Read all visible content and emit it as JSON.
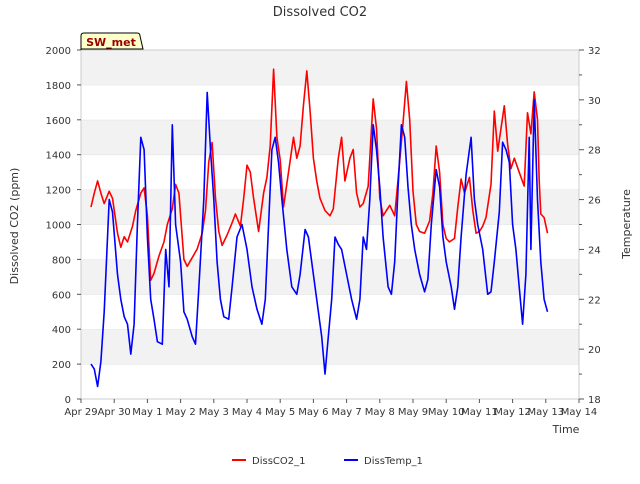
{
  "chart_data": {
    "type": "line",
    "title": "Dissolved CO2",
    "xlabel": "Time",
    "ylabel_left": "Dissolved CO2 (ppm)",
    "ylabel_right": "Temperature",
    "site_badge": "SW_met",
    "x_range_days": [
      0,
      15
    ],
    "x_ticks": [
      {
        "label": "Apr 29",
        "day": 0
      },
      {
        "label": "Apr 30",
        "day": 1
      },
      {
        "label": "May 1",
        "day": 2
      },
      {
        "label": "May 2",
        "day": 3
      },
      {
        "label": "May 3",
        "day": 4
      },
      {
        "label": "May 4",
        "day": 5
      },
      {
        "label": "May 5",
        "day": 6
      },
      {
        "label": "May 6",
        "day": 7
      },
      {
        "label": "May 7",
        "day": 8
      },
      {
        "label": "May 8",
        "day": 9
      },
      {
        "label": "May 9",
        "day": 10
      },
      {
        "label": "May 10",
        "day": 11
      },
      {
        "label": "May 11",
        "day": 12
      },
      {
        "label": "May 12",
        "day": 13
      },
      {
        "label": "May 13",
        "day": 14
      },
      {
        "label": "May 14",
        "day": 15
      }
    ],
    "y_left": {
      "min": 0,
      "max": 2000,
      "ticks": [
        0,
        200,
        400,
        600,
        800,
        1000,
        1200,
        1400,
        1600,
        1800,
        2000
      ]
    },
    "y_right": {
      "min": 18,
      "max": 32,
      "ticks": [
        18,
        20,
        22,
        24,
        26,
        28,
        30,
        32
      ]
    },
    "grid": "horizontal bands",
    "legend_position": "bottom-center",
    "series": [
      {
        "name": "DissCO2_1",
        "axis": "left",
        "color": "#ff0000",
        "points": [
          [
            0.3,
            1100
          ],
          [
            0.4,
            1180
          ],
          [
            0.5,
            1250
          ],
          [
            0.6,
            1180
          ],
          [
            0.7,
            1120
          ],
          [
            0.85,
            1190
          ],
          [
            0.95,
            1150
          ],
          [
            1.1,
            950
          ],
          [
            1.2,
            870
          ],
          [
            1.3,
            930
          ],
          [
            1.4,
            900
          ],
          [
            1.55,
            990
          ],
          [
            1.65,
            1080
          ],
          [
            1.8,
            1180
          ],
          [
            1.9,
            1210
          ],
          [
            2.0,
            1050
          ],
          [
            2.1,
            680
          ],
          [
            2.2,
            720
          ],
          [
            2.35,
            820
          ],
          [
            2.5,
            900
          ],
          [
            2.6,
            1000
          ],
          [
            2.75,
            1090
          ],
          [
            2.85,
            1230
          ],
          [
            2.95,
            1180
          ],
          [
            3.1,
            800
          ],
          [
            3.2,
            760
          ],
          [
            3.35,
            810
          ],
          [
            3.5,
            860
          ],
          [
            3.65,
            950
          ],
          [
            3.75,
            1080
          ],
          [
            3.85,
            1360
          ],
          [
            3.95,
            1470
          ],
          [
            4.05,
            1150
          ],
          [
            4.15,
            960
          ],
          [
            4.25,
            880
          ],
          [
            4.4,
            940
          ],
          [
            4.55,
            1010
          ],
          [
            4.65,
            1060
          ],
          [
            4.8,
            990
          ],
          [
            4.9,
            1150
          ],
          [
            5.0,
            1340
          ],
          [
            5.1,
            1300
          ],
          [
            5.2,
            1150
          ],
          [
            5.35,
            960
          ],
          [
            5.5,
            1180
          ],
          [
            5.6,
            1270
          ],
          [
            5.7,
            1450
          ],
          [
            5.8,
            1890
          ],
          [
            5.9,
            1500
          ],
          [
            6.0,
            1370
          ],
          [
            6.1,
            1100
          ],
          [
            6.25,
            1300
          ],
          [
            6.4,
            1500
          ],
          [
            6.5,
            1380
          ],
          [
            6.6,
            1450
          ],
          [
            6.7,
            1680
          ],
          [
            6.8,
            1880
          ],
          [
            6.9,
            1650
          ],
          [
            7.0,
            1380
          ],
          [
            7.1,
            1250
          ],
          [
            7.2,
            1150
          ],
          [
            7.35,
            1080
          ],
          [
            7.5,
            1050
          ],
          [
            7.6,
            1090
          ],
          [
            7.75,
            1380
          ],
          [
            7.85,
            1500
          ],
          [
            7.95,
            1250
          ],
          [
            8.1,
            1380
          ],
          [
            8.2,
            1430
          ],
          [
            8.3,
            1180
          ],
          [
            8.4,
            1100
          ],
          [
            8.5,
            1120
          ],
          [
            8.65,
            1220
          ],
          [
            8.8,
            1720
          ],
          [
            8.9,
            1550
          ],
          [
            9.0,
            1150
          ],
          [
            9.1,
            1050
          ],
          [
            9.2,
            1080
          ],
          [
            9.3,
            1110
          ],
          [
            9.45,
            1050
          ],
          [
            9.55,
            1260
          ],
          [
            9.7,
            1580
          ],
          [
            9.8,
            1820
          ],
          [
            9.9,
            1600
          ],
          [
            10.0,
            1190
          ],
          [
            10.1,
            1000
          ],
          [
            10.2,
            960
          ],
          [
            10.35,
            950
          ],
          [
            10.5,
            1020
          ],
          [
            10.6,
            1180
          ],
          [
            10.7,
            1450
          ],
          [
            10.8,
            1300
          ],
          [
            10.9,
            1000
          ],
          [
            11.0,
            920
          ],
          [
            11.1,
            900
          ],
          [
            11.25,
            920
          ],
          [
            11.35,
            1100
          ],
          [
            11.45,
            1260
          ],
          [
            11.55,
            1180
          ],
          [
            11.7,
            1270
          ],
          [
            11.8,
            1080
          ],
          [
            11.9,
            950
          ],
          [
            12.0,
            960
          ],
          [
            12.1,
            990
          ],
          [
            12.2,
            1040
          ],
          [
            12.35,
            1230
          ],
          [
            12.45,
            1650
          ],
          [
            12.55,
            1420
          ],
          [
            12.65,
            1550
          ],
          [
            12.75,
            1680
          ],
          [
            12.85,
            1460
          ],
          [
            12.95,
            1320
          ],
          [
            13.05,
            1380
          ],
          [
            13.2,
            1300
          ],
          [
            13.35,
            1220
          ],
          [
            13.45,
            1640
          ],
          [
            13.55,
            1520
          ],
          [
            13.65,
            1760
          ],
          [
            13.75,
            1600
          ],
          [
            13.8,
            1250
          ],
          [
            13.85,
            1060
          ],
          [
            13.95,
            1040
          ],
          [
            14.05,
            950
          ]
        ]
      },
      {
        "name": "DissTemp_1",
        "axis": "right",
        "color": "#0000ff",
        "points": [
          [
            0.3,
            19.4
          ],
          [
            0.4,
            19.2
          ],
          [
            0.5,
            18.5
          ],
          [
            0.6,
            19.5
          ],
          [
            0.7,
            21.5
          ],
          [
            0.85,
            26.0
          ],
          [
            0.95,
            25.5
          ],
          [
            1.1,
            23.0
          ],
          [
            1.2,
            22.0
          ],
          [
            1.3,
            21.3
          ],
          [
            1.4,
            21.0
          ],
          [
            1.5,
            19.8
          ],
          [
            1.6,
            21.0
          ],
          [
            1.7,
            25.0
          ],
          [
            1.8,
            28.5
          ],
          [
            1.9,
            28.0
          ],
          [
            2.0,
            24.5
          ],
          [
            2.1,
            22.0
          ],
          [
            2.2,
            21.2
          ],
          [
            2.3,
            20.3
          ],
          [
            2.45,
            20.2
          ],
          [
            2.55,
            24.0
          ],
          [
            2.65,
            22.5
          ],
          [
            2.75,
            29.0
          ],
          [
            2.85,
            25.0
          ],
          [
            3.0,
            23.5
          ],
          [
            3.1,
            21.5
          ],
          [
            3.2,
            21.2
          ],
          [
            3.35,
            20.5
          ],
          [
            3.45,
            20.2
          ],
          [
            3.55,
            22.5
          ],
          [
            3.7,
            26.0
          ],
          [
            3.8,
            30.3
          ],
          [
            3.9,
            28.0
          ],
          [
            4.0,
            26.0
          ],
          [
            4.1,
            23.5
          ],
          [
            4.2,
            22.0
          ],
          [
            4.3,
            21.3
          ],
          [
            4.45,
            21.2
          ],
          [
            4.55,
            22.5
          ],
          [
            4.7,
            24.5
          ],
          [
            4.85,
            25.0
          ],
          [
            5.0,
            24.0
          ],
          [
            5.15,
            22.5
          ],
          [
            5.3,
            21.6
          ],
          [
            5.45,
            21.0
          ],
          [
            5.55,
            22.0
          ],
          [
            5.65,
            25.0
          ],
          [
            5.75,
            28.0
          ],
          [
            5.85,
            28.5
          ],
          [
            5.95,
            27.5
          ],
          [
            6.05,
            26.0
          ],
          [
            6.2,
            24.0
          ],
          [
            6.35,
            22.5
          ],
          [
            6.5,
            22.2
          ],
          [
            6.6,
            23.0
          ],
          [
            6.75,
            24.8
          ],
          [
            6.85,
            24.5
          ],
          [
            6.95,
            23.5
          ],
          [
            7.1,
            22.0
          ],
          [
            7.25,
            20.5
          ],
          [
            7.35,
            19.0
          ],
          [
            7.45,
            20.5
          ],
          [
            7.55,
            22.0
          ],
          [
            7.65,
            24.5
          ],
          [
            7.75,
            24.2
          ],
          [
            7.85,
            24.0
          ],
          [
            8.0,
            23.0
          ],
          [
            8.15,
            22.0
          ],
          [
            8.3,
            21.2
          ],
          [
            8.4,
            22.0
          ],
          [
            8.5,
            24.5
          ],
          [
            8.6,
            24.0
          ],
          [
            8.7,
            26.0
          ],
          [
            8.8,
            29.0
          ],
          [
            8.9,
            28.0
          ],
          [
            9.0,
            26.5
          ],
          [
            9.1,
            24.5
          ],
          [
            9.25,
            22.5
          ],
          [
            9.35,
            22.2
          ],
          [
            9.45,
            23.5
          ],
          [
            9.55,
            26.5
          ],
          [
            9.65,
            29.0
          ],
          [
            9.75,
            28.5
          ],
          [
            9.85,
            26.5
          ],
          [
            9.95,
            25.0
          ],
          [
            10.05,
            24.0
          ],
          [
            10.2,
            23.0
          ],
          [
            10.35,
            22.3
          ],
          [
            10.45,
            22.8
          ],
          [
            10.55,
            25.0
          ],
          [
            10.7,
            27.2
          ],
          [
            10.8,
            26.5
          ],
          [
            10.9,
            24.5
          ],
          [
            11.0,
            23.5
          ],
          [
            11.15,
            22.5
          ],
          [
            11.25,
            21.6
          ],
          [
            11.35,
            22.5
          ],
          [
            11.45,
            24.5
          ],
          [
            11.6,
            27.0
          ],
          [
            11.75,
            28.5
          ],
          [
            11.85,
            26.0
          ],
          [
            11.95,
            25.0
          ],
          [
            12.1,
            24.0
          ],
          [
            12.25,
            22.2
          ],
          [
            12.35,
            22.3
          ],
          [
            12.45,
            23.5
          ],
          [
            12.6,
            25.5
          ],
          [
            12.7,
            28.3
          ],
          [
            12.8,
            28.0
          ],
          [
            12.9,
            27.5
          ],
          [
            13.0,
            25.0
          ],
          [
            13.1,
            24.0
          ],
          [
            13.2,
            22.5
          ],
          [
            13.3,
            21.0
          ],
          [
            13.4,
            23.0
          ],
          [
            13.5,
            28.5
          ],
          [
            13.55,
            24.0
          ],
          [
            13.65,
            30.0
          ],
          [
            13.75,
            26.0
          ],
          [
            13.85,
            23.5
          ],
          [
            13.95,
            22.0
          ],
          [
            14.05,
            21.5
          ]
        ]
      }
    ]
  }
}
